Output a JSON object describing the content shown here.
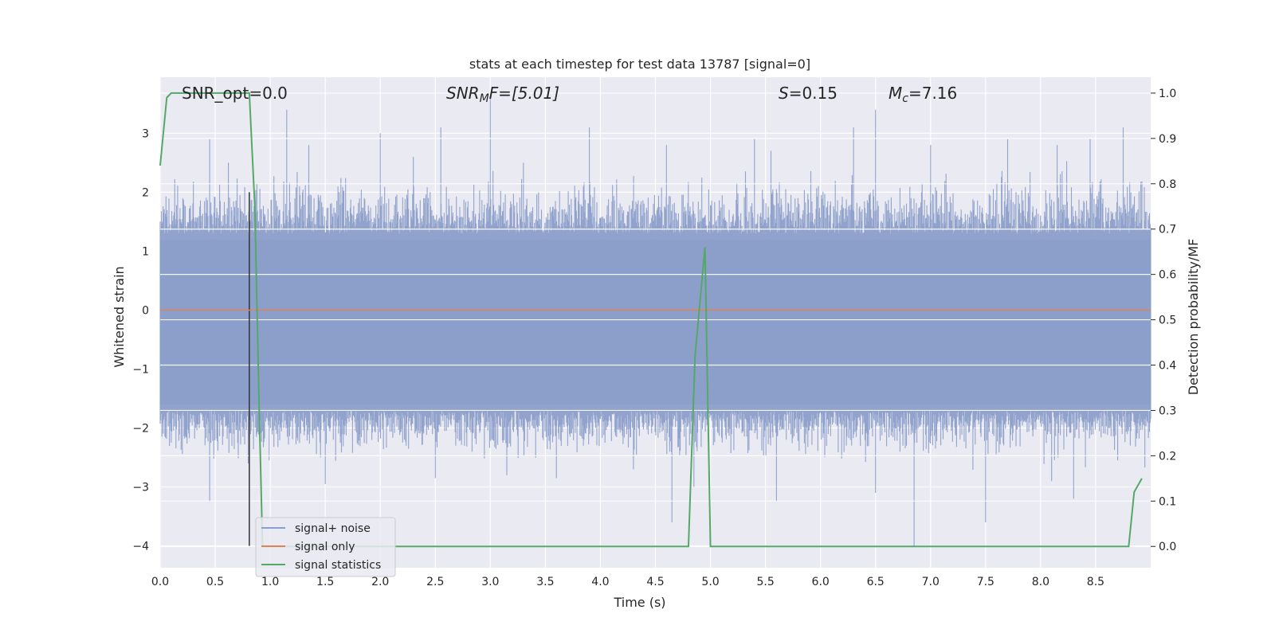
{
  "chart_data": {
    "type": "line",
    "title": "stats at each timestep for test data 13787 [signal=0]",
    "xlabel": "Time (s)",
    "ylabel": "Whitened strain",
    "y2label": "Detection probability/MF",
    "xlim": [
      0.0,
      9.0
    ],
    "ylim": [
      -4.37,
      3.95
    ],
    "y2lim": [
      -0.047,
      1.035
    ],
    "x_ticks": [
      "0.0",
      "0.5",
      "1.0",
      "1.5",
      "2.0",
      "2.5",
      "3.0",
      "3.5",
      "4.0",
      "4.5",
      "5.0",
      "5.5",
      "6.0",
      "6.5",
      "7.0",
      "7.5",
      "8.0",
      "8.5"
    ],
    "y_ticks": [
      "3",
      "2",
      "1",
      "0",
      "−1",
      "−2",
      "−3",
      "−4"
    ],
    "y2_ticks": [
      "1.0",
      "0.9",
      "0.8",
      "0.7",
      "0.6",
      "0.5",
      "0.4",
      "0.3",
      "0.2",
      "0.1",
      "0.0"
    ],
    "grid": true,
    "legend_position": "lower-left",
    "annotations": {
      "snr_opt": "SNR_opt=0.0",
      "snr_mf_main": "SNR",
      "snr_mf_sub": "M",
      "snr_mf_tail": "F=[5.01]",
      "s_main": "S",
      "s_value": "=0.15",
      "mc_main": "M",
      "mc_sub": "c",
      "mc_value": "=7.16"
    },
    "series": [
      {
        "name": "signal+ noise",
        "color": "#8c9fca",
        "axis": "left",
        "description_stats": {
          "core_low": -1.7,
          "core_high": 1.3,
          "max": 3.6,
          "min": -4.0
        },
        "spikes": [
          [
            0.45,
            2.9
          ],
          [
            0.62,
            2.5
          ],
          [
            1.15,
            3.4
          ],
          [
            1.35,
            2.8
          ],
          [
            2.0,
            3.0
          ],
          [
            2.3,
            2.6
          ],
          [
            2.55,
            3.1
          ],
          [
            3.0,
            3.6
          ],
          [
            3.3,
            2.5
          ],
          [
            3.9,
            3.1
          ],
          [
            4.6,
            2.8
          ],
          [
            5.4,
            2.9
          ],
          [
            5.55,
            2.7
          ],
          [
            6.3,
            3.1
          ],
          [
            6.5,
            3.4
          ],
          [
            7.0,
            2.8
          ],
          [
            7.7,
            2.9
          ],
          [
            8.15,
            2.8
          ],
          [
            8.45,
            2.9
          ],
          [
            8.75,
            3.1
          ],
          [
            0.45,
            -3.25
          ],
          [
            0.8,
            -2.6
          ],
          [
            1.5,
            -2.95
          ],
          [
            2.5,
            -2.85
          ],
          [
            3.15,
            -2.8
          ],
          [
            3.6,
            -2.85
          ],
          [
            4.3,
            -2.7
          ],
          [
            4.65,
            -3.6
          ],
          [
            4.85,
            -3.0
          ],
          [
            5.6,
            -3.25
          ],
          [
            6.5,
            -3.1
          ],
          [
            6.85,
            -4.0
          ],
          [
            7.5,
            -3.6
          ],
          [
            8.1,
            -2.9
          ],
          [
            8.3,
            -3.2
          ],
          [
            8.7,
            -2.55
          ]
        ]
      },
      {
        "name": "signal only",
        "color": "#dd8452",
        "axis": "left",
        "x": [
          0.0,
          9.0
        ],
        "y": [
          0.0,
          0.0
        ]
      },
      {
        "name": "signal statistics",
        "color": "#55a868",
        "axis": "right",
        "x": [
          0.0,
          0.06,
          0.1,
          0.78,
          0.81,
          0.86,
          0.9,
          0.93,
          4.8,
          4.86,
          4.95,
          5.0,
          8.8,
          8.85,
          8.92
        ],
        "y": [
          0.84,
          0.99,
          1.0,
          1.0,
          1.0,
          0.75,
          0.3,
          0.0,
          0.0,
          0.42,
          0.66,
          0.0,
          0.0,
          0.12,
          0.15
        ]
      }
    ],
    "marker_line": {
      "x": 0.81,
      "y_low": -4.0,
      "y_high": 2.0,
      "color": "#333333"
    }
  }
}
